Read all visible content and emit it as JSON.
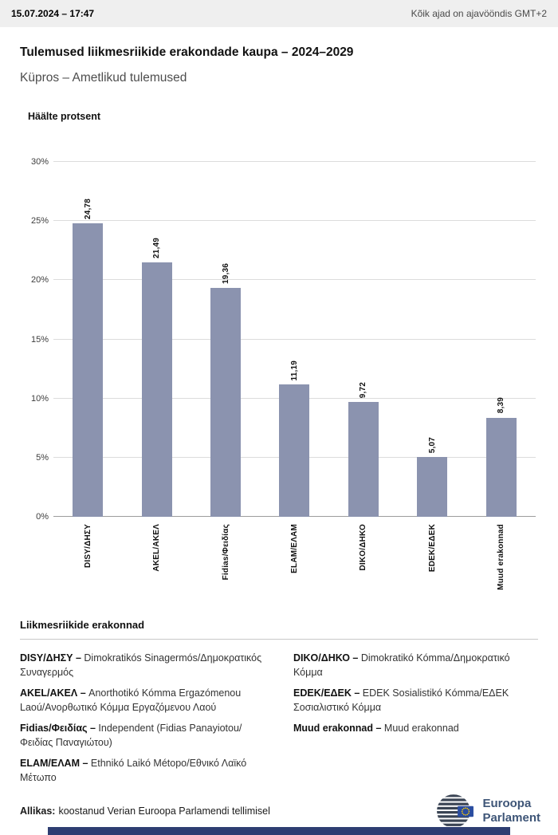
{
  "header": {
    "datetime": "15.07.2024 – 17:47",
    "timezone_note": "Kõik ajad on ajavööndis GMT+2"
  },
  "title": "Tulemused liikmesriikide erakondade kaupa – 2024–2029",
  "subtitle": "Küpros – Ametlikud tulemused",
  "chart_data": {
    "type": "bar",
    "title": "Häälte protsent",
    "categories": [
      "DISY/ΔΗΣΥ",
      "AKEL/ΑΚΕΛ",
      "Fidias/Φειδίας",
      "ELAM/ΕΛΑΜ",
      "DIKO/ΔΗΚΟ",
      "EDEK/ΕΔΕΚ",
      "Muud erakonnad"
    ],
    "values": [
      24.78,
      21.49,
      19.36,
      11.19,
      9.72,
      5.07,
      8.39
    ],
    "value_labels": [
      "24,78",
      "21,49",
      "19,36",
      "11,19",
      "9,72",
      "5,07",
      "8,39"
    ],
    "ylim": [
      0,
      30
    ],
    "yticks": [
      "0%",
      "5%",
      "10%",
      "15%",
      "20%",
      "25%",
      "30%"
    ],
    "ylabel": "",
    "xlabel": "",
    "grid": true,
    "legend_position": "none",
    "bar_color": "#8b93af"
  },
  "legend": {
    "heading": "Liikmesriikide erakonnad",
    "columns": [
      [
        {
          "label": "DISY/ΔΗΣΥ –",
          "text": "Dimokratikós Sinagermós/Δημοκρατικός Συναγερμός"
        },
        {
          "label": "AKEL/ΑΚΕΛ –",
          "text": "Anorthotikó Kómma Ergazómenou Laoú/Ανορθωτικό Κόμμα Εργαζόμενου Λαού"
        },
        {
          "label": "Fidias/Φειδίας –",
          "text": "Independent (Fidias Panayiotou/Φειδίας Παναγιώτου)"
        },
        {
          "label": "ELAM/ΕΛΑΜ –",
          "text": "Ethnikó Laikó Métopo/Εθνικό Λαϊκό Μέτωπο"
        }
      ],
      [
        {
          "label": "DIKO/ΔΗΚΟ –",
          "text": "Dimokratikó Kómma/Δημοκρατικό Κόμμα"
        },
        {
          "label": "EDEK/ΕΔΕΚ –",
          "text": "EDEK Sosialistikó Kómma/ΕΔΕΚ Σοσιαλιστικό Κόμμα"
        },
        {
          "label": "Muud erakonnad –",
          "text": "Muud erakonnad"
        }
      ]
    ]
  },
  "footer": {
    "source_label": "Allikas:",
    "source_text": "koostanud Verian Euroopa Parlamendi tellimisel",
    "logo_line1": "Euroopa",
    "logo_line2": "Parlament"
  },
  "colors": {
    "bar": "#8b93af",
    "accent_bar": "#2e3e72",
    "logo_blue": "#3e5577",
    "topbar_bg": "#efefef",
    "eu_flag_blue": "#2a4da0",
    "eu_star_yellow": "#ffcc00"
  }
}
